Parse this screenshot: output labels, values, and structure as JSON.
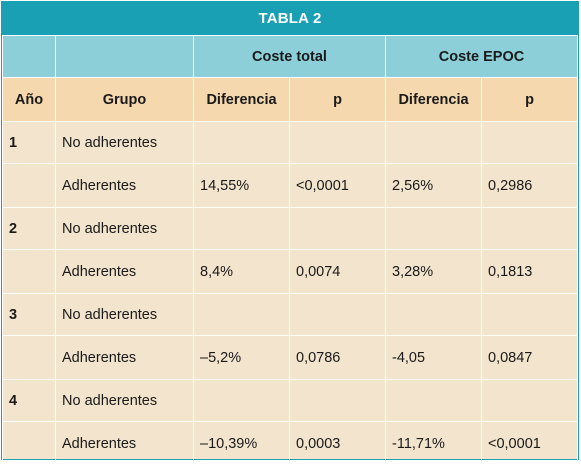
{
  "title": "TABLA 2",
  "groups": {
    "coste_total": "Coste total",
    "coste_epoc": "Coste EPOC"
  },
  "columns": {
    "anio": "Año",
    "grupo": "Grupo",
    "dif1": "Diferencia",
    "p1": "p",
    "dif2": "Diferencia",
    "p2": "p"
  },
  "rows": [
    {
      "anio": "1",
      "grupo": "No adherentes",
      "dif1": "",
      "p1": "",
      "dif2": "",
      "p2": ""
    },
    {
      "anio": "",
      "grupo": "Adherentes",
      "dif1": "14,55%",
      "p1": "<0,0001",
      "dif2": "2,56%",
      "p2": "0,2986"
    },
    {
      "anio": "2",
      "grupo": "No adherentes",
      "dif1": "",
      "p1": "",
      "dif2": "",
      "p2": ""
    },
    {
      "anio": "",
      "grupo": "Adherentes",
      "dif1": "8,4%",
      "p1": "0,0074",
      "dif2": "3,28%",
      "p2": "0,1813"
    },
    {
      "anio": "3",
      "grupo": "No adherentes",
      "dif1": "",
      "p1": "",
      "dif2": "",
      "p2": ""
    },
    {
      "anio": "",
      "grupo": "Adherentes",
      "dif1": "–5,2%",
      "p1": "0,0786",
      "dif2": "-4,05",
      "p2": "0,0847"
    },
    {
      "anio": "4",
      "grupo": "No adherentes",
      "dif1": "",
      "p1": "",
      "dif2": "",
      "p2": ""
    },
    {
      "anio": "",
      "grupo": "Adherentes",
      "dif1": "–10,39%",
      "p1": "0,0003",
      "dif2": "-11,71%",
      "p2": "<0,0001"
    }
  ],
  "colors": {
    "header_teal": "#1aa0b4",
    "subheader_blue": "#8ccfd8",
    "header_tan": "#f6d8ae",
    "body_bg": "#f2e4cd"
  }
}
